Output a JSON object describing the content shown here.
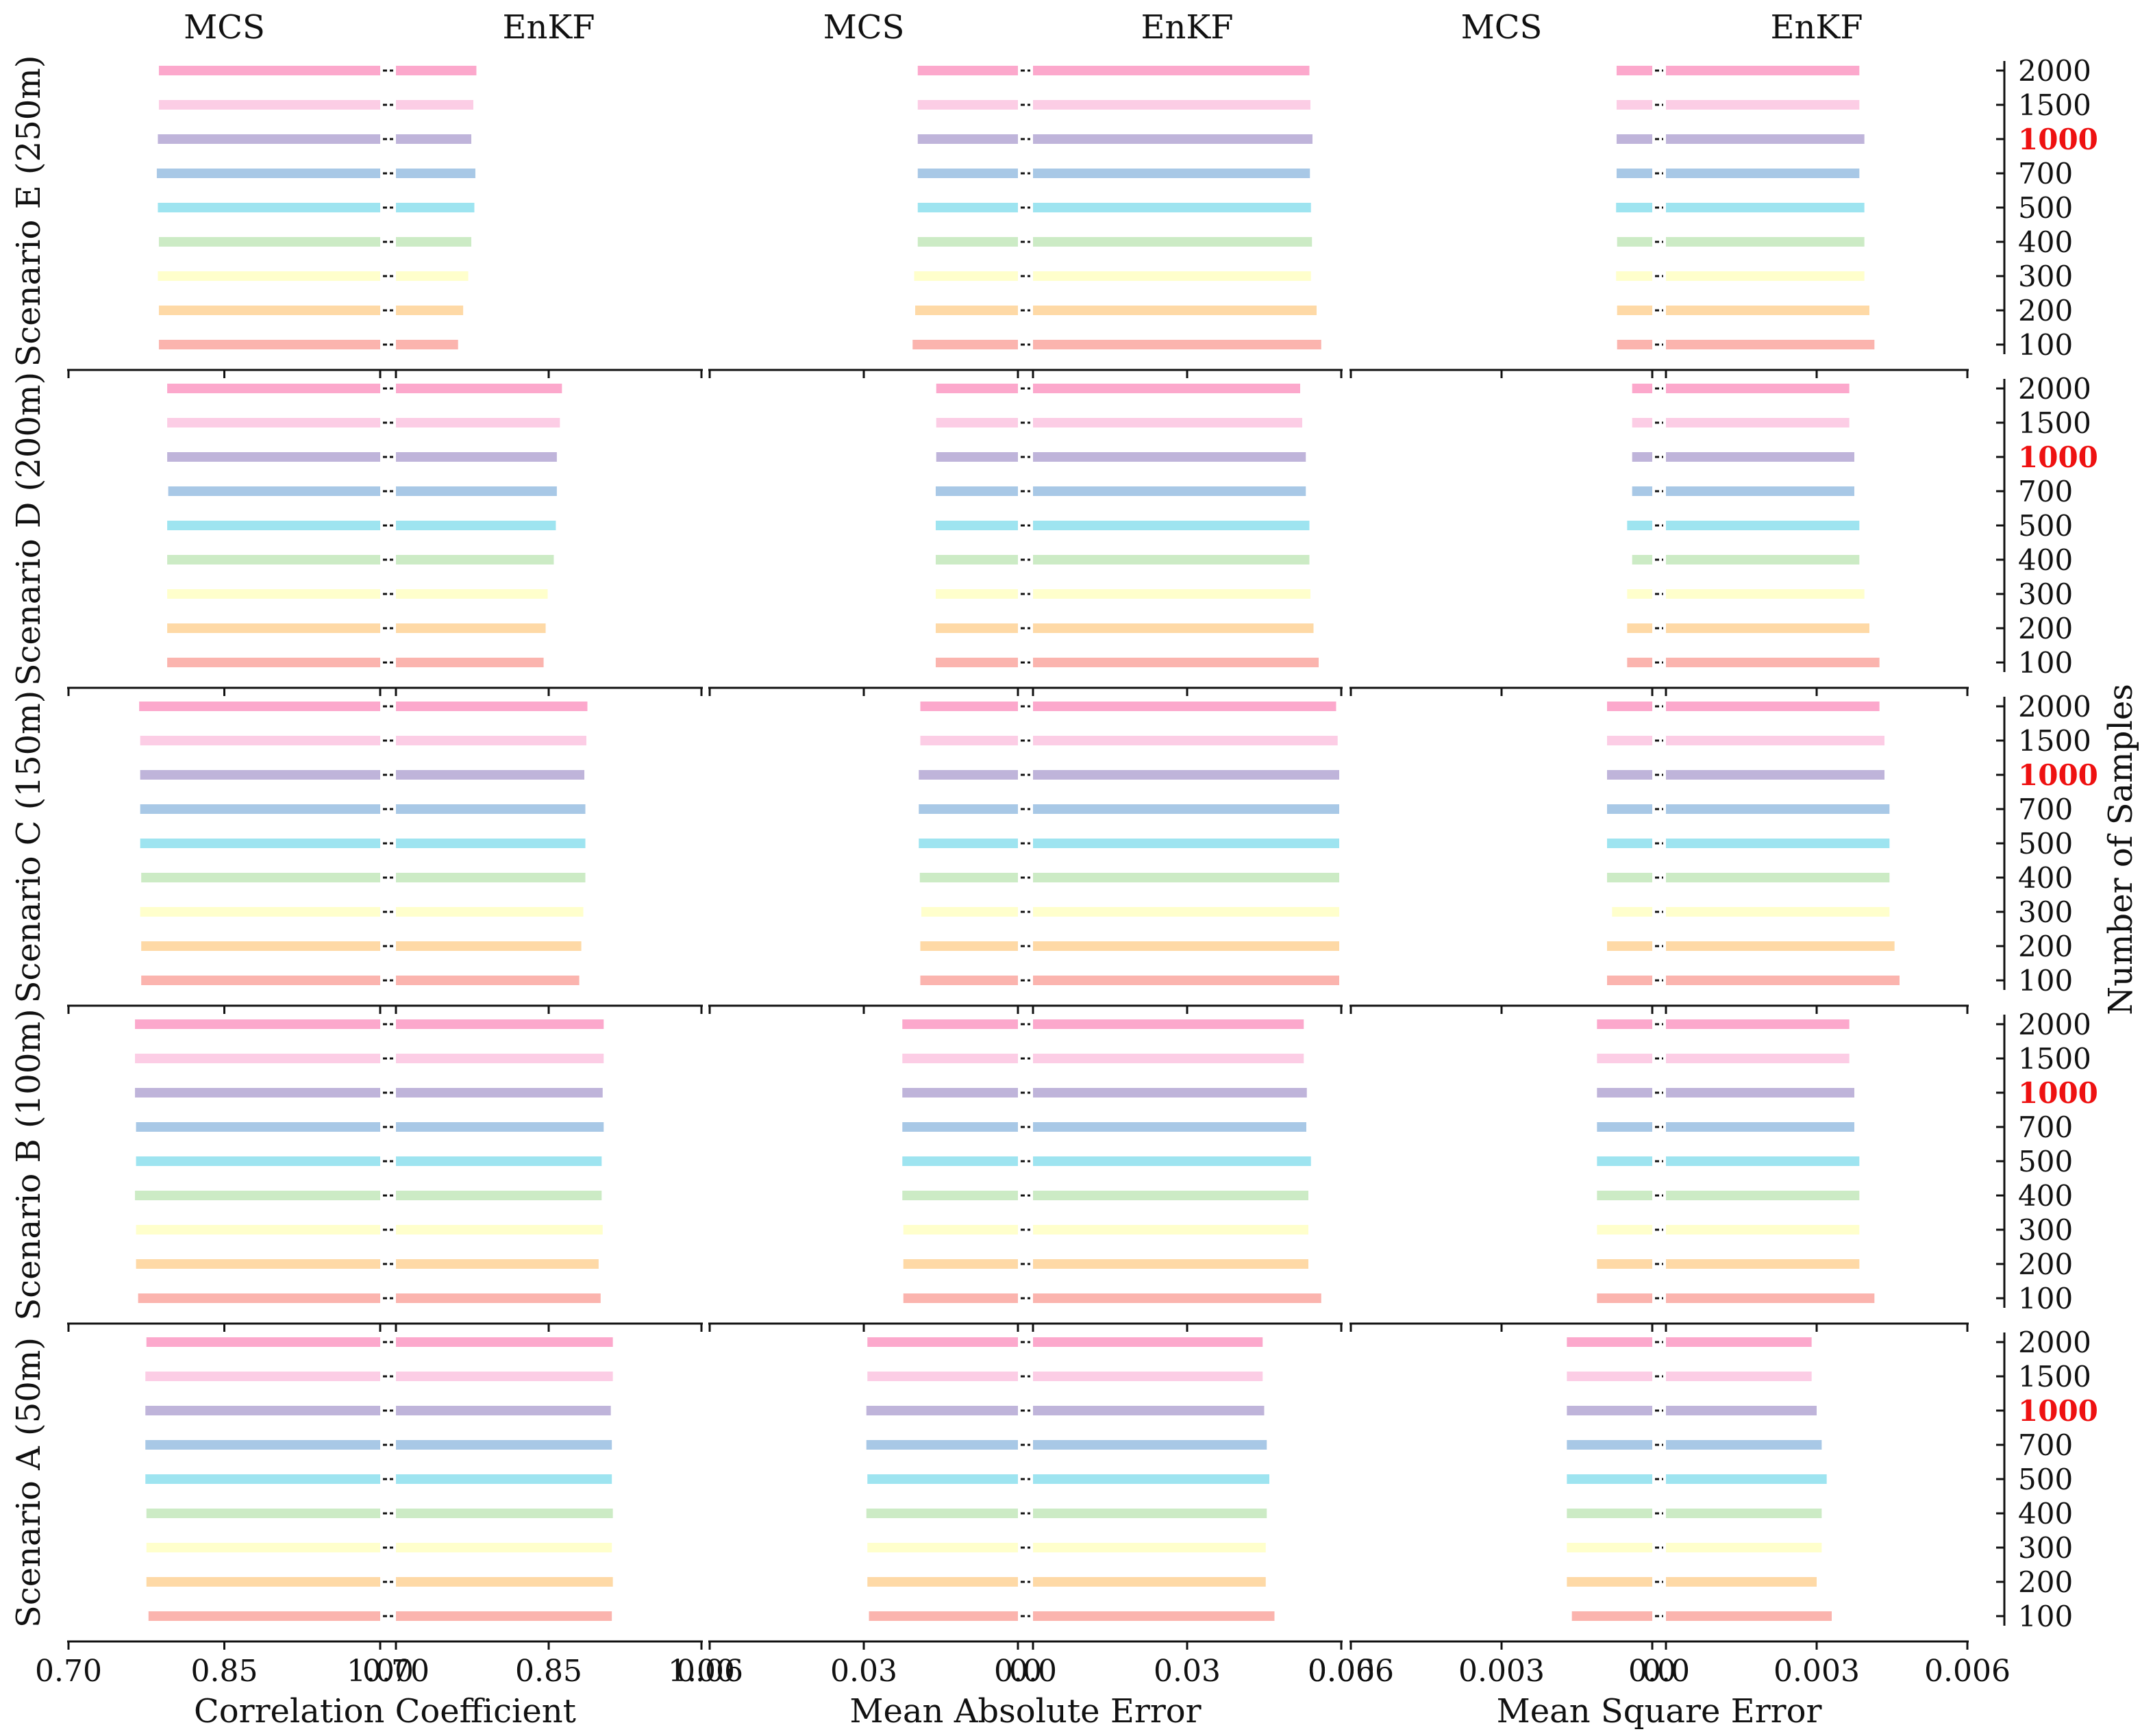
{
  "chart_data": {
    "type": "bar",
    "orientation": "horizontal",
    "layout": "butterfly grid (MCS bars extend left, EnKF bars extend right from shared zero)",
    "metric_headers": [
      "MCS",
      "EnKF"
    ],
    "metrics": [
      {
        "key": "cc",
        "xlabel": "Correlation Coefficient",
        "mcs_ticks": [
          "0.70",
          "0.85",
          "1.00"
        ],
        "enkf_ticks": [
          "0.70",
          "0.85",
          "1.00"
        ],
        "mcs_range": [
          0.7,
          1.0
        ],
        "enkf_range": [
          0.7,
          1.0
        ]
      },
      {
        "key": "mae",
        "xlabel": "Mean Absolute Error",
        "mcs_ticks": [
          "0.06",
          "0.03",
          "0.0"
        ],
        "enkf_ticks": [
          "0.0",
          "0.03",
          "0.06"
        ],
        "mcs_range": [
          0.06,
          0.0
        ],
        "enkf_range": [
          0.0,
          0.06
        ]
      },
      {
        "key": "mse",
        "xlabel": "Mean Square Error",
        "mcs_ticks": [
          "0.006",
          "0.003",
          "0.0"
        ],
        "enkf_ticks": [
          "0.0",
          "0.003",
          "0.006"
        ],
        "mcs_range": [
          0.006,
          0.0
        ],
        "enkf_range": [
          0.0,
          0.006
        ]
      }
    ],
    "samples": [
      "100",
      "200",
      "300",
      "400",
      "500",
      "700",
      "1000",
      "1500",
      "2000"
    ],
    "highlight_sample": "1000",
    "highlight_color": "#ee1111",
    "series_colors": [
      "#fbb4ae",
      "#fed9a6",
      "#ffffcc",
      "#ccebc5",
      "#9ee4f0",
      "#a8c8e6",
      "#bfb4da",
      "#fccde5",
      "#fca8cc"
    ],
    "right_axis_label": "Number of Samples",
    "scenarios": [
      {
        "name": "Scenario E (250m)",
        "cc": {
          "mcs": [
            0.787,
            0.787,
            0.786,
            0.787,
            0.786,
            0.785,
            0.786,
            0.787,
            0.787
          ],
          "enkf": [
            0.761,
            0.766,
            0.771,
            0.774,
            0.777,
            0.778,
            0.774,
            0.776,
            0.779
          ]
        },
        "mae": {
          "mcs": [
            0.0205,
            0.02,
            0.0202,
            0.0195,
            0.0195,
            0.0195,
            0.0195,
            0.0195,
            0.0195
          ],
          "enkf": [
            0.0561,
            0.0552,
            0.0541,
            0.0543,
            0.0541,
            0.0539,
            0.0544,
            0.054,
            0.0538
          ]
        },
        "mse": {
          "mcs": [
            0.0007,
            0.0007,
            0.00072,
            0.0007,
            0.00072,
            0.00071,
            0.00071,
            0.00071,
            0.00071
          ],
          "enkf": [
            0.00415,
            0.00405,
            0.00395,
            0.00395,
            0.00395,
            0.00385,
            0.00395,
            0.00385,
            0.00385
          ]
        }
      },
      {
        "name": "Scenario D (200m)",
        "cc": {
          "mcs": [
            0.795,
            0.795,
            0.795,
            0.795,
            0.795,
            0.796,
            0.795,
            0.795,
            0.795
          ],
          "enkf": [
            0.845,
            0.847,
            0.849,
            0.855,
            0.857,
            0.858,
            0.858,
            0.861,
            0.863
          ]
        },
        "mae": {
          "mcs": [
            0.016,
            0.016,
            0.016,
            0.016,
            0.016,
            0.016,
            0.0159,
            0.0159,
            0.0159
          ],
          "enkf": [
            0.0556,
            0.0546,
            0.054,
            0.0538,
            0.0538,
            0.0531,
            0.0531,
            0.0524,
            0.052
          ]
        },
        "mse": {
          "mcs": [
            0.0005,
            0.0005,
            0.0005,
            0.0004,
            0.0005,
            0.0004,
            0.0004,
            0.0004,
            0.0004
          ],
          "enkf": [
            0.00425,
            0.00405,
            0.00395,
            0.00385,
            0.00385,
            0.00375,
            0.00375,
            0.00365,
            0.00365
          ]
        }
      },
      {
        "name": "Scenario C (150m)",
        "cc": {
          "mcs": [
            0.77,
            0.77,
            0.769,
            0.77,
            0.769,
            0.769,
            0.769,
            0.769,
            0.768
          ],
          "enkf": [
            0.88,
            0.882,
            0.884,
            0.886,
            0.886,
            0.886,
            0.885,
            0.887,
            0.888
          ]
        },
        "mae": {
          "mcs": [
            0.019,
            0.019,
            0.0188,
            0.0191,
            0.0193,
            0.0193,
            0.0193,
            0.019,
            0.019
          ],
          "enkf": [
            0.0596,
            0.0596,
            0.0596,
            0.0596,
            0.0596,
            0.0596,
            0.0596,
            0.0593,
            0.059
          ]
        },
        "mse": {
          "mcs": [
            0.0009,
            0.0009,
            0.0008,
            0.0009,
            0.0009,
            0.0009,
            0.0009,
            0.0009,
            0.0009
          ],
          "enkf": [
            0.00465,
            0.00455,
            0.00445,
            0.00445,
            0.00445,
            0.00445,
            0.00435,
            0.00435,
            0.00425
          ]
        }
      },
      {
        "name": "Scenario B (100m)",
        "cc": {
          "mcs": [
            0.767,
            0.765,
            0.765,
            0.764,
            0.765,
            0.765,
            0.764,
            0.764,
            0.764
          ],
          "enkf": [
            0.901,
            0.899,
            0.903,
            0.902,
            0.902,
            0.904,
            0.903,
            0.904,
            0.904
          ]
        },
        "mae": {
          "mcs": [
            0.0223,
            0.0223,
            0.0223,
            0.0225,
            0.0225,
            0.0225,
            0.0225,
            0.0225,
            0.0225
          ],
          "enkf": [
            0.0561,
            0.0536,
            0.0536,
            0.0536,
            0.0541,
            0.0532,
            0.0533,
            0.0527,
            0.0527
          ]
        },
        "mse": {
          "mcs": [
            0.0011,
            0.0011,
            0.0011,
            0.0011,
            0.0011,
            0.0011,
            0.0011,
            0.0011,
            0.0011
          ],
          "enkf": [
            0.00415,
            0.00385,
            0.00385,
            0.00385,
            0.00385,
            0.00375,
            0.00375,
            0.00365,
            0.00365
          ]
        }
      },
      {
        "name": "Scenario A (50m)",
        "cc": {
          "mcs": [
            0.777,
            0.775,
            0.775,
            0.775,
            0.774,
            0.774,
            0.774,
            0.774,
            0.775
          ],
          "enkf": [
            0.912,
            0.913,
            0.912,
            0.913,
            0.912,
            0.912,
            0.911,
            0.913,
            0.913
          ]
        },
        "mae": {
          "mcs": [
            0.029,
            0.0293,
            0.0293,
            0.0295,
            0.0293,
            0.0295,
            0.0295,
            0.0293,
            0.0293
          ],
          "enkf": [
            0.047,
            0.0453,
            0.0453,
            0.0455,
            0.046,
            0.0455,
            0.045,
            0.0447,
            0.0447
          ]
        },
        "mse": {
          "mcs": [
            0.0016,
            0.0017,
            0.0017,
            0.0017,
            0.0017,
            0.0017,
            0.0017,
            0.0017,
            0.0017
          ],
          "enkf": [
            0.0033,
            0.003,
            0.0031,
            0.0031,
            0.0032,
            0.0031,
            0.003,
            0.0029,
            0.0029
          ]
        }
      }
    ]
  }
}
